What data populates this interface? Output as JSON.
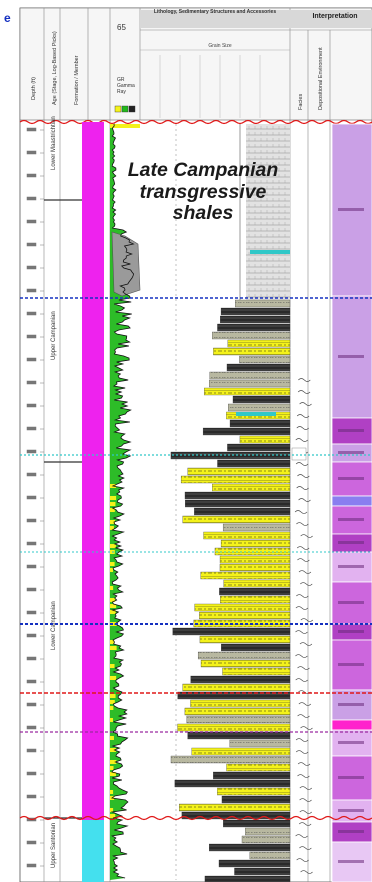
{
  "header": {
    "col_number": "65",
    "top_right": "Interpretation",
    "lithology_title": "Lithology, Sedimentary Structures and Accessories",
    "grain_size": "Grain Size",
    "gr_label": "GR Gamma Ray",
    "columns": [
      "Depth (ft)",
      "Age (Stage, Log-Based Picks)",
      "Formation / Member",
      "Facies",
      "Depositional Environment"
    ]
  },
  "callout": {
    "line1": "Late Campanian",
    "line2": "transgressive",
    "line3": "shales"
  },
  "colors": {
    "magenta": "#ee22ee",
    "cyan": "#44e0ee",
    "sand": "#f4f21a",
    "green": "#22b81c",
    "lavender": "#caa0e6",
    "purple": "#b040c4",
    "blue_marker": "#1530c0",
    "red_marker": "#e01818",
    "cyan_marker": "#30c8c8"
  }
}
